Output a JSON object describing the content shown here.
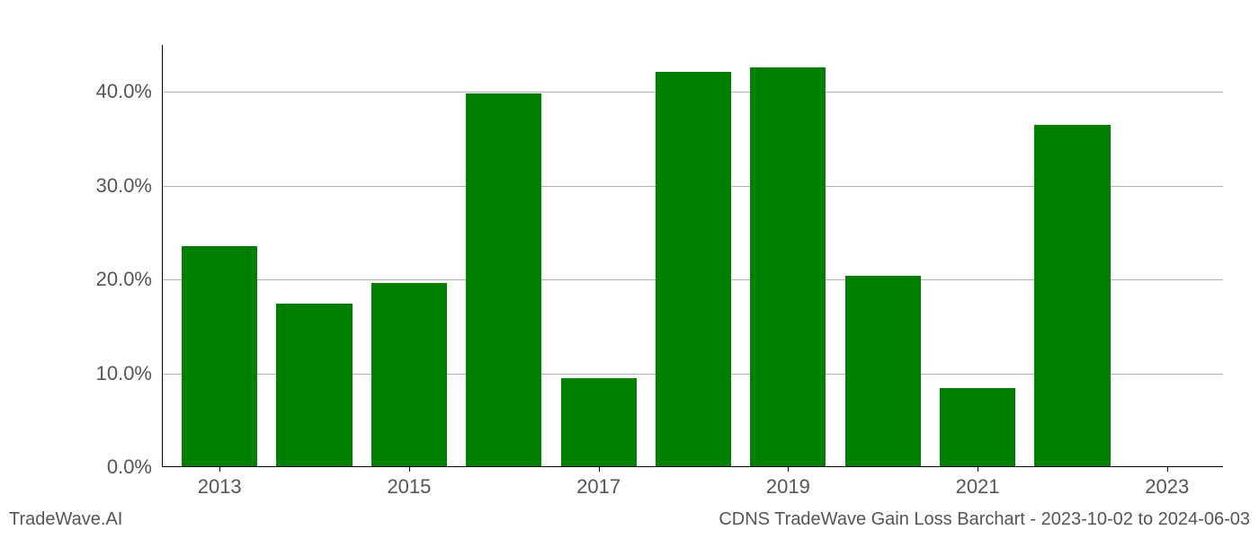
{
  "chart": {
    "type": "bar",
    "years": [
      2013,
      2014,
      2015,
      2016,
      2017,
      2018,
      2019,
      2020,
      2021,
      2022,
      2023
    ],
    "values": [
      23.5,
      17.3,
      19.5,
      39.7,
      9.4,
      42.0,
      42.5,
      20.3,
      8.3,
      36.4,
      0.0
    ],
    "bar_color": "#008000",
    "background_color": "#ffffff",
    "grid_color": "#b0b0b0",
    "axis_color": "#000000",
    "tick_label_color": "#555555",
    "tick_fontsize": 22,
    "ylim": [
      0,
      45
    ],
    "yticks": [
      0,
      10,
      20,
      30,
      40
    ],
    "ytick_labels": [
      "0.0%",
      "10.0%",
      "20.0%",
      "30.0%",
      "40.0%"
    ],
    "xticks": [
      2013,
      2015,
      2017,
      2019,
      2021,
      2023
    ],
    "xlim": [
      2012.4,
      2023.6
    ],
    "bar_width": 0.8
  },
  "footer": {
    "left": "TradeWave.AI",
    "right": "CDNS TradeWave Gain Loss Barchart - 2023-10-02 to 2024-06-03",
    "fontsize": 20,
    "color": "#555555"
  }
}
